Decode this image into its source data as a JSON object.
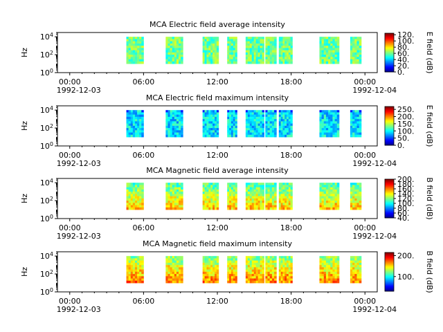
{
  "figure": {
    "xaxis": {
      "tick_labels": [
        "00:00",
        "06:00",
        "12:00",
        "18:00",
        "00:00"
      ],
      "tick_hours": [
        0,
        6,
        12,
        18,
        24
      ],
      "date_start": "1992-12-03",
      "date_end": "1992-12-04",
      "minor_tick_interval_hours": 1,
      "xlim_hours": [
        -1,
        25
      ]
    }
  },
  "chart_data": [
    {
      "type": "heatmap",
      "title": "MCA  Electric field average intensity",
      "ylabel": "Hz",
      "yscale": "log",
      "ylim": [
        1,
        30000
      ],
      "yticks": [
        1,
        100,
        10000
      ],
      "ytick_labels": [
        "10^0",
        "10^2",
        "10^4"
      ],
      "colorbar": {
        "label": "E field (dB)",
        "range": [
          0,
          125
        ],
        "ticks": [
          0,
          20,
          40,
          60,
          80,
          100,
          120
        ],
        "tick_labels": [
          "0.",
          "20.",
          "40.",
          "60.",
          "80.",
          "100.",
          "120."
        ]
      },
      "colormap": "jet",
      "blocks_hours": [
        [
          4.6,
          6.0
        ],
        [
          7.8,
          9.2
        ],
        [
          10.8,
          12.1
        ],
        [
          12.8,
          13.6
        ],
        [
          14.3,
          15.8
        ],
        [
          15.9,
          16.8
        ],
        [
          17.0,
          18.1
        ],
        [
          20.3,
          21.9
        ],
        [
          22.8,
          23.7
        ]
      ],
      "freq_range_hz": [
        10,
        10000
      ],
      "typical_level_db": 60
    },
    {
      "type": "heatmap",
      "title": "MCA  Electric field maximum intensity",
      "ylabel": "Hz",
      "yscale": "log",
      "ylim": [
        1,
        30000
      ],
      "yticks": [
        1,
        100,
        10000
      ],
      "ytick_labels": [
        "10^0",
        "10^2",
        "10^4"
      ],
      "colorbar": {
        "label": "E field (dB)",
        "range": [
          0,
          270
        ],
        "ticks": [
          0,
          50,
          100,
          150,
          200,
          250
        ],
        "tick_labels": [
          "0.",
          "50.",
          "100.",
          "150.",
          "200.",
          "250."
        ]
      },
      "colormap": "jet",
      "blocks_hours": [
        [
          4.6,
          6.0
        ],
        [
          7.8,
          9.2
        ],
        [
          10.8,
          12.1
        ],
        [
          12.8,
          13.6
        ],
        [
          14.3,
          15.8
        ],
        [
          15.9,
          16.8
        ],
        [
          17.0,
          18.1
        ],
        [
          20.3,
          21.9
        ],
        [
          22.8,
          23.7
        ]
      ],
      "freq_range_hz": [
        10,
        10000
      ],
      "typical_level_db": 95
    },
    {
      "type": "heatmap",
      "title": "MCA  Magnetic field average intensity",
      "ylabel": "Hz",
      "yscale": "log",
      "ylim": [
        1,
        30000
      ],
      "yticks": [
        1,
        100,
        10000
      ],
      "ytick_labels": [
        "10^0",
        "10^2",
        "10^4"
      ],
      "colorbar": {
        "label": "B field (dB)",
        "range": [
          40,
          200
        ],
        "ticks": [
          40,
          60,
          80,
          100,
          120,
          140,
          160,
          180,
          200
        ],
        "tick_labels": [
          "40.",
          "60.",
          "80.",
          "100.",
          "120.",
          "140.",
          "160.",
          "180.",
          "200."
        ]
      },
      "colormap": "jet",
      "blocks_hours": [
        [
          4.6,
          6.0
        ],
        [
          7.8,
          9.2
        ],
        [
          10.8,
          12.1
        ],
        [
          12.8,
          13.6
        ],
        [
          14.3,
          15.8
        ],
        [
          15.9,
          16.8
        ],
        [
          17.0,
          18.1
        ],
        [
          20.3,
          21.9
        ],
        [
          22.8,
          23.7
        ]
      ],
      "freq_range_hz": [
        10,
        10000
      ],
      "typical_level_db": 120
    },
    {
      "type": "heatmap",
      "title": "MCA  Magnetic field maximum intensity",
      "ylabel": "Hz",
      "yscale": "log",
      "ylim": [
        1,
        30000
      ],
      "yticks": [
        1,
        100,
        10000
      ],
      "ytick_labels": [
        "10^0",
        "10^2",
        "10^4"
      ],
      "colorbar": {
        "label": "B field (dB)",
        "range": [
          30,
          215
        ],
        "ticks": [
          100,
          200
        ],
        "tick_labels": [
          "100.",
          "200."
        ]
      },
      "colormap": "jet",
      "blocks_hours": [
        [
          4.6,
          6.0
        ],
        [
          7.8,
          9.2
        ],
        [
          10.8,
          12.1
        ],
        [
          12.8,
          13.6
        ],
        [
          14.3,
          15.8
        ],
        [
          15.9,
          16.8
        ],
        [
          17.0,
          18.1
        ],
        [
          20.3,
          21.9
        ],
        [
          22.8,
          23.7
        ]
      ],
      "freq_range_hz": [
        10,
        10000
      ],
      "typical_level_db": 135
    }
  ]
}
